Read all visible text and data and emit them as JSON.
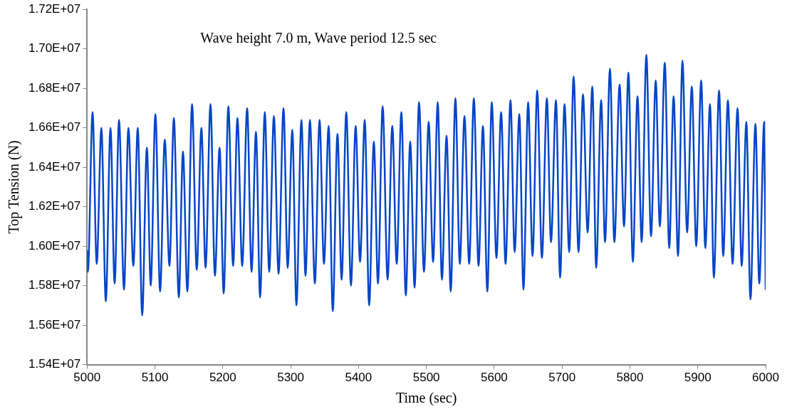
{
  "chart_data": {
    "type": "line",
    "xlabel": "Time (sec)",
    "ylabel": "Top Tension (N)",
    "annotations": [
      "Wave height 7.0 m, Wave period 12.5 sec"
    ],
    "xlim": [
      5000,
      6000
    ],
    "xticks": [
      5000,
      5100,
      5200,
      5300,
      5400,
      5500,
      5600,
      5700,
      5800,
      5900,
      6000
    ],
    "ylim": [
      15400000,
      17200000
    ],
    "yticks": [
      {
        "value": 15400000,
        "label": "1.54E+07"
      },
      {
        "value": 15600000,
        "label": "1.56E+07"
      },
      {
        "value": 15800000,
        "label": "1.58E+07"
      },
      {
        "value": 16000000,
        "label": "1.60E+07"
      },
      {
        "value": 16200000,
        "label": "1.62E+07"
      },
      {
        "value": 16400000,
        "label": "1.64E+07"
      },
      {
        "value": 16600000,
        "label": "1.66E+07"
      },
      {
        "value": 16800000,
        "label": "1.68E+07"
      },
      {
        "value": 17000000,
        "label": "1.70E+07"
      },
      {
        "value": 17200000,
        "label": "1.72E+07"
      }
    ],
    "grid": false,
    "legend": false,
    "marker": "none",
    "line_style": "solid",
    "series": [
      {
        "color": "#0645c8",
        "x": [
          5000,
          5001.2,
          5008.1,
          5014.2,
          5021.1,
          5027.6,
          5034.5,
          5040.6,
          5047.1,
          5054.4,
          5060.9,
          5068.2,
          5074.7,
          5081.2,
          5088.1,
          5093.8,
          5100.7,
          5107.6,
          5114.5,
          5121.4,
          5127.9,
          5135.2,
          5141.3,
          5147.8,
          5154.7,
          5161.6,
          5168.5,
          5174.6,
          5181.9,
          5188.4,
          5195.3,
          5201.3,
          5208.2,
          5215.2,
          5221.6,
          5228.6,
          5235.9,
          5242.4,
          5248.9,
          5255,
          5261.9,
          5268.4,
          5275.3,
          5282.2,
          5289.5,
          5295.6,
          5302.5,
          5308.5,
          5315.9,
          5321.9,
          5328.4,
          5335.7,
          5342.6,
          5349.1,
          5356,
          5362.1,
          5369,
          5375.1,
          5382,
          5388.9,
          5395.8,
          5402.3,
          5409.2,
          5415.7,
          5422.6,
          5428.7,
          5435.6,
          5442.9,
          5449.8,
          5456.3,
          5463.2,
          5469.7,
          5476.2,
          5482.7,
          5489.2,
          5496.5,
          5503.4,
          5509.9,
          5516.8,
          5522.9,
          5529.8,
          5535.9,
          5542.8,
          5549.3,
          5556.2,
          5563.1,
          5570,
          5576.9,
          5583.4,
          5589.9,
          5596.4,
          5603.3,
          5610.2,
          5616.7,
          5624,
          5630.1,
          5637,
          5643.1,
          5650,
          5656.5,
          5663.4,
          5670.3,
          5677.6,
          5683.7,
          5691,
          5697.1,
          5703.6,
          5710.5,
          5717,
          5724.3,
          5730.8,
          5737.7,
          5744.6,
          5750.3,
          5757.6,
          5763.3,
          5770.6,
          5777.1,
          5784.8,
          5791.3,
          5797.8,
          5804.3,
          5811.2,
          5817.3,
          5824.2,
          5831.1,
          5838,
          5844.1,
          5851.4,
          5857.9,
          5864.4,
          5870.9,
          5877.4,
          5884.3,
          5891.2,
          5897.7,
          5905,
          5911.1,
          5918,
          5923.7,
          5931.4,
          5937.5,
          5944.4,
          5951.3,
          5958.6,
          5964.7,
          5971.6,
          5977.6,
          5985,
          5990.6,
          5997.9,
          6000
        ],
        "values": [
          15980000,
          15870000,
          16680000,
          15910000,
          16600000,
          15720000,
          16600000,
          15810000,
          16640000,
          15780000,
          16600000,
          15900000,
          16600000,
          15650000,
          16500000,
          15800000,
          16670000,
          15770000,
          16540000,
          15900000,
          16650000,
          15740000,
          16480000,
          15770000,
          16720000,
          15880000,
          16600000,
          15890000,
          16720000,
          15850000,
          16500000,
          15760000,
          16710000,
          15900000,
          16650000,
          15900000,
          16700000,
          15870000,
          16580000,
          15740000,
          16680000,
          15870000,
          16660000,
          15860000,
          16700000,
          15890000,
          16590000,
          15700000,
          16640000,
          15850000,
          16640000,
          15810000,
          16640000,
          15910000,
          16610000,
          15670000,
          16570000,
          15830000,
          16680000,
          15800000,
          16610000,
          15920000,
          16640000,
          15700000,
          16530000,
          15810000,
          16710000,
          15830000,
          16610000,
          15910000,
          16680000,
          15750000,
          16530000,
          15790000,
          16730000,
          15870000,
          16630000,
          15920000,
          16730000,
          15830000,
          16560000,
          15770000,
          16750000,
          15910000,
          16660000,
          15910000,
          16750000,
          15900000,
          16610000,
          15770000,
          16730000,
          15940000,
          16680000,
          15910000,
          16740000,
          15970000,
          16670000,
          15780000,
          16730000,
          15950000,
          16790000,
          15940000,
          16750000,
          16020000,
          16740000,
          15840000,
          16720000,
          15970000,
          16860000,
          15970000,
          16770000,
          16070000,
          16810000,
          15890000,
          16740000,
          16020000,
          16900000,
          16020000,
          16820000,
          16100000,
          16880000,
          15920000,
          16760000,
          16020000,
          16970000,
          16050000,
          16840000,
          16100000,
          16930000,
          15990000,
          16760000,
          15950000,
          16940000,
          16070000,
          16810000,
          16000000,
          16840000,
          15990000,
          16720000,
          15840000,
          16790000,
          15950000,
          16740000,
          15910000,
          16700000,
          15900000,
          16630000,
          15730000,
          16620000,
          15810000,
          16630000,
          15780000
        ]
      }
    ]
  }
}
